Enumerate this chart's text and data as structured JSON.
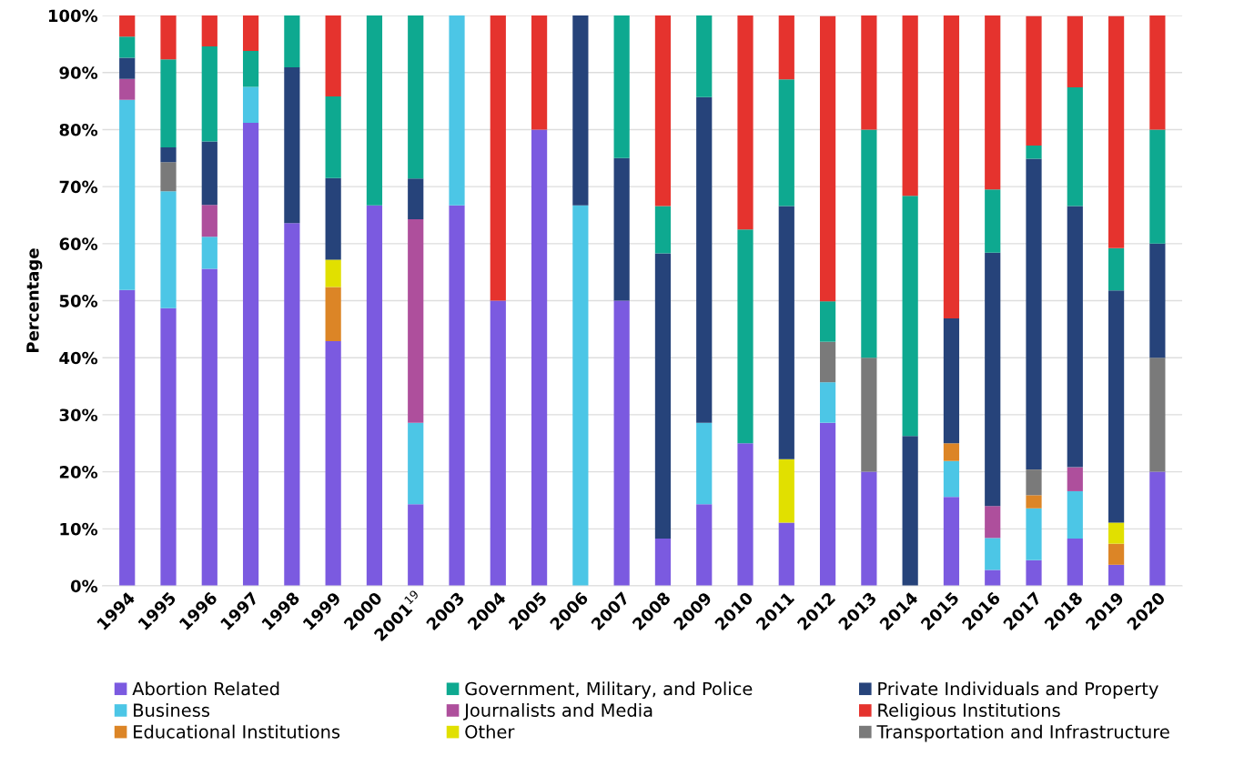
{
  "chart_data": {
    "type": "bar",
    "stacked": true,
    "ylabel": "Percentage",
    "categories": [
      "1994",
      "1995",
      "1996",
      "1997",
      "1998",
      "1999",
      "2000",
      "2001$^{19}$",
      "2003",
      "2004",
      "2005",
      "2006",
      "2007",
      "2008",
      "2009",
      "2010",
      "2011",
      "2012",
      "2013",
      "2014",
      "2015",
      "2016",
      "2017",
      "2018",
      "2019",
      "2020"
    ],
    "series": [
      {
        "name": "Abortion Related",
        "color": "#7b5ae0",
        "values": [
          51.9,
          48.7,
          55.6,
          81.2,
          63.6,
          42.9,
          66.7,
          14.3,
          66.7,
          50,
          80,
          null,
          50,
          8.3,
          14.3,
          25,
          11.1,
          28.6,
          20,
          null,
          15.6,
          2.8,
          4.5,
          8.3,
          3.7,
          20
        ]
      },
      {
        "name": "Business",
        "color": "#4cc6e6",
        "values": [
          33.3,
          20.5,
          5.6,
          6.3,
          null,
          null,
          null,
          14.3,
          33.3,
          null,
          null,
          66.7,
          null,
          null,
          14.3,
          null,
          null,
          7.1,
          null,
          null,
          6.3,
          5.6,
          9.1,
          8.3,
          null,
          null
        ]
      },
      {
        "name": "Educational Institutions",
        "color": "#dc8526",
        "values": [
          null,
          null,
          null,
          null,
          null,
          9.5,
          null,
          null,
          null,
          null,
          null,
          null,
          null,
          null,
          null,
          null,
          null,
          null,
          null,
          null,
          3.1,
          null,
          2.3,
          null,
          3.7,
          null
        ]
      },
      {
        "name": "Other",
        "color": "#e1e000",
        "values": [
          null,
          null,
          null,
          null,
          null,
          4.8,
          null,
          null,
          null,
          null,
          null,
          null,
          null,
          null,
          null,
          null,
          11.1,
          null,
          null,
          null,
          null,
          null,
          null,
          null,
          3.7,
          null
        ]
      },
      {
        "name": "Journalists and Media",
        "color": "#ae4f9c",
        "values": [
          3.7,
          null,
          5.6,
          null,
          null,
          null,
          null,
          35.7,
          null,
          null,
          null,
          null,
          null,
          null,
          null,
          null,
          null,
          null,
          null,
          null,
          null,
          5.6,
          null,
          4.2,
          null,
          null
        ]
      },
      {
        "name": "Transportation and Infrastructure",
        "color": "#7a7a7a",
        "values": [
          null,
          5.1,
          null,
          null,
          null,
          null,
          null,
          null,
          null,
          null,
          null,
          null,
          null,
          null,
          null,
          null,
          null,
          7.1,
          20,
          null,
          null,
          null,
          4.5,
          null,
          null,
          20
        ]
      },
      {
        "name": "Private Individuals and Property",
        "color": "#26437a",
        "values": [
          3.7,
          2.6,
          11.1,
          null,
          27.3,
          14.3,
          null,
          7.1,
          null,
          null,
          null,
          33.3,
          25,
          50,
          57.1,
          null,
          44.4,
          null,
          null,
          26.3,
          21.9,
          44.4,
          54.5,
          45.8,
          40.7,
          20
        ]
      },
      {
        "name": "Government, Military, and Police",
        "color": "#0ea990",
        "values": [
          3.7,
          15.4,
          16.7,
          6.3,
          9.1,
          14.3,
          33.3,
          28.6,
          null,
          null,
          null,
          null,
          25,
          8.3,
          14.3,
          37.5,
          22.2,
          7.1,
          40,
          42.1,
          null,
          11.1,
          2.3,
          20.8,
          7.4,
          20
        ]
      },
      {
        "name": "Religious Institutions",
        "color": "#e5332e",
        "values": [
          3.7,
          7.7,
          5.4,
          6.2,
          null,
          14.2,
          null,
          null,
          null,
          50,
          20,
          null,
          null,
          33.4,
          null,
          37.5,
          11.2,
          50,
          20,
          31.6,
          53.1,
          30.5,
          22.7,
          12.5,
          40.7,
          20
        ]
      }
    ],
    "ylim": [
      0,
      100
    ],
    "yticks": [
      {
        "value": 0,
        "label": "0%"
      },
      {
        "value": 10,
        "label": "10%"
      },
      {
        "value": 20,
        "label": "20%"
      },
      {
        "value": 30,
        "label": "30%"
      },
      {
        "value": 40,
        "label": "40%"
      },
      {
        "value": 50,
        "label": "50%"
      },
      {
        "value": 60,
        "label": "60%"
      },
      {
        "value": 70,
        "label": "70%"
      },
      {
        "value": 80,
        "label": "80%"
      },
      {
        "value": 90,
        "label": "90%"
      },
      {
        "value": 100,
        "label": "100%"
      }
    ],
    "grid": "y",
    "legend": "bottom"
  }
}
